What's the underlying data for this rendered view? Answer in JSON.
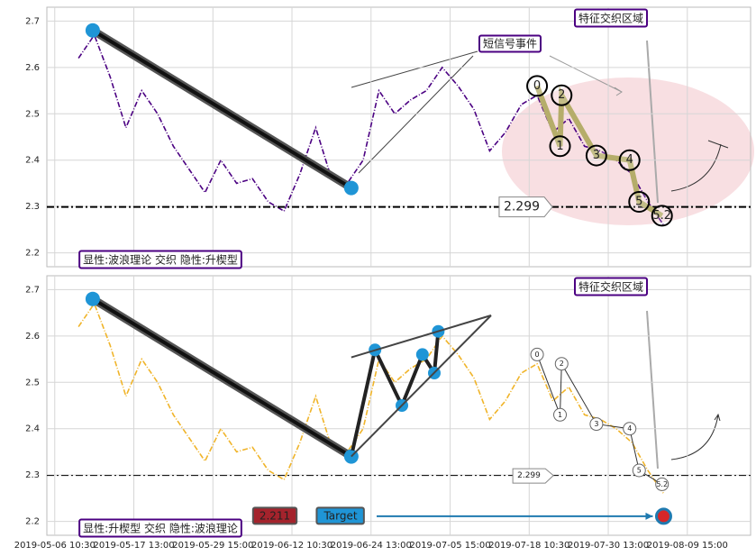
{
  "chart_data": [
    {
      "type": "line",
      "x": [
        3,
        5,
        7,
        9,
        11,
        13,
        15,
        17,
        19,
        21,
        23,
        25,
        27,
        29,
        31,
        33,
        35,
        37,
        39,
        41,
        43,
        45,
        47,
        49,
        51,
        53,
        55,
        57,
        59,
        61,
        63,
        65,
        67,
        69,
        71,
        73,
        75,
        77
      ],
      "series": [
        {
          "color": "#4b0082",
          "values": [
            2.62,
            2.67,
            2.58,
            2.47,
            2.55,
            2.5,
            2.43,
            2.38,
            2.33,
            2.4,
            2.35,
            2.36,
            2.31,
            2.29,
            2.37,
            2.47,
            2.36,
            2.35,
            2.4,
            2.55,
            2.5,
            2.53,
            2.55,
            2.6,
            2.56,
            2.51,
            2.42,
            2.46,
            2.52,
            2.54,
            2.46,
            2.49,
            2.43,
            2.42,
            2.4,
            2.37,
            2.31,
            2.26
          ]
        }
      ],
      "xlim": [
        -1,
        88
      ],
      "xticks": [
        0,
        10,
        20,
        30,
        40,
        50,
        60,
        70,
        80
      ],
      "ylim": [
        2.17,
        2.73
      ],
      "yticks": [
        2.2,
        2.3,
        2.4,
        2.5,
        2.6,
        2.7
      ],
      "hline": 2.299,
      "trend": {
        "x": [
          4.8,
          37.5
        ],
        "y": [
          2.68,
          2.34
        ]
      },
      "waves": {
        "labels": [
          "0",
          "1",
          "2",
          "3",
          "4",
          "5",
          "5.2"
        ],
        "x": [
          61,
          63.9,
          64.1,
          68.5,
          72.7,
          73.9,
          76.8
        ],
        "y": [
          2.56,
          2.43,
          2.54,
          2.41,
          2.4,
          2.31,
          2.28
        ]
      },
      "region_label": "特征交织区域",
      "signal_label": "短信号事件",
      "pattern_label": "显性:波浪理论 交织 隐性:升楔型"
    },
    {
      "type": "line",
      "x": [
        3,
        5,
        7,
        9,
        11,
        13,
        15,
        17,
        19,
        21,
        23,
        25,
        27,
        29,
        31,
        33,
        35,
        37,
        39,
        41,
        43,
        45,
        47,
        49,
        51,
        53,
        55,
        57,
        59,
        61,
        63,
        65,
        67,
        69,
        71,
        73,
        75,
        77
      ],
      "series": [
        {
          "color": "#f0b429",
          "values": [
            2.62,
            2.67,
            2.58,
            2.47,
            2.55,
            2.5,
            2.43,
            2.38,
            2.33,
            2.4,
            2.35,
            2.36,
            2.31,
            2.29,
            2.37,
            2.47,
            2.36,
            2.35,
            2.4,
            2.55,
            2.5,
            2.53,
            2.55,
            2.6,
            2.56,
            2.51,
            2.42,
            2.46,
            2.52,
            2.54,
            2.46,
            2.49,
            2.43,
            2.42,
            2.4,
            2.37,
            2.31,
            2.26
          ]
        }
      ],
      "xlim": [
        -1,
        88
      ],
      "xticks": [
        {
          "value": 0,
          "label": "2019-05-06 10:30"
        },
        {
          "value": 10,
          "label": "2019-05-17 13:00"
        },
        {
          "value": 20,
          "label": "2019-05-29 15:00"
        },
        {
          "value": 30,
          "label": "2019-06-12 10:30"
        },
        {
          "value": 40,
          "label": "2019-06-24 13:00"
        },
        {
          "value": 50,
          "label": "2019-07-05 15:00"
        },
        {
          "value": 60,
          "label": "2019-07-18 10:30"
        },
        {
          "value": 70,
          "label": "2019-07-30 13:00"
        },
        {
          "value": 80,
          "label": "2019-08-09 15:00"
        }
      ],
      "ylim": [
        2.17,
        2.73
      ],
      "yticks": [
        2.2,
        2.3,
        2.4,
        2.5,
        2.6,
        2.7
      ],
      "hline": 2.299,
      "trend": {
        "x": [
          4.8,
          37.5
        ],
        "y": [
          2.68,
          2.34
        ]
      },
      "wedge": {
        "x": [
          37.5,
          40.5,
          43.9,
          46.5,
          48,
          48.5
        ],
        "y": [
          2.34,
          2.57,
          2.45,
          2.56,
          2.52,
          2.61
        ]
      },
      "waves": {
        "labels": [
          "0",
          "1",
          "2",
          "3",
          "4",
          "5",
          "5.2"
        ],
        "x": [
          61,
          63.9,
          64.1,
          68.5,
          72.7,
          73.9,
          76.8
        ],
        "y": [
          2.56,
          2.43,
          2.54,
          2.41,
          2.4,
          2.31,
          2.28
        ]
      },
      "target": {
        "x": 77,
        "y": 2.211,
        "label": "Target"
      },
      "region_label": "特征交织区域",
      "pattern_label": "显性:升楔型 交织 隐性:波浪理论"
    }
  ]
}
